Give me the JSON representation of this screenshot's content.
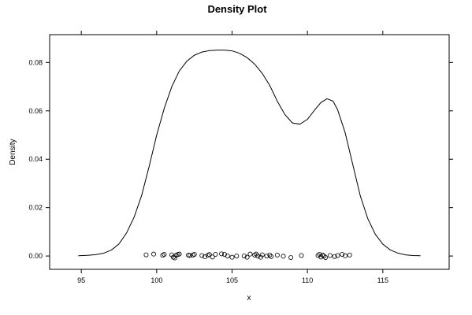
{
  "chart_data": {
    "type": "line",
    "title": "Density Plot",
    "xlabel": "x",
    "ylabel": "Density",
    "xlim": [
      92.9,
      119.4
    ],
    "ylim": [
      -0.0055,
      0.0915
    ],
    "x_ticks": [
      95,
      100,
      105,
      110,
      115
    ],
    "x_tick_labels": [
      "95",
      "100",
      "105",
      "110",
      "115"
    ],
    "y_ticks": [
      0.0,
      0.02,
      0.04,
      0.06,
      0.08
    ],
    "y_tick_labels": [
      "0.00",
      "0.02",
      "0.04",
      "0.06",
      "0.08"
    ],
    "grid": false,
    "series": [
      {
        "x": [
          94.8,
          95.5,
          96.0,
          96.5,
          97.0,
          97.5,
          98.0,
          98.5,
          99.0,
          99.5,
          100.0,
          100.5,
          101.0,
          101.5,
          102.0,
          102.5,
          103.0,
          103.5,
          104.0,
          104.5,
          105.0,
          105.5,
          106.0,
          106.5,
          107.0,
          107.5,
          108.0,
          108.5,
          109.0,
          109.5,
          110.0,
          110.5,
          110.9,
          111.3,
          111.7,
          112.0,
          112.5,
          113.0,
          113.5,
          114.0,
          114.5,
          115.0,
          115.5,
          116.0,
          116.5,
          117.0,
          117.5
        ],
        "y": [
          0.0001,
          0.0003,
          0.0006,
          0.0012,
          0.0025,
          0.005,
          0.0095,
          0.016,
          0.025,
          0.037,
          0.05,
          0.061,
          0.07,
          0.0765,
          0.0805,
          0.083,
          0.0843,
          0.0849,
          0.0851,
          0.0851,
          0.0848,
          0.0838,
          0.082,
          0.0793,
          0.0755,
          0.0705,
          0.064,
          0.0585,
          0.055,
          0.0545,
          0.0565,
          0.0605,
          0.0635,
          0.065,
          0.064,
          0.0605,
          0.051,
          0.038,
          0.025,
          0.0155,
          0.009,
          0.0049,
          0.0025,
          0.0012,
          0.0005,
          0.0002,
          0.0001
        ]
      }
    ],
    "rug": {
      "x": [
        99.3,
        99.8,
        100.4,
        100.5,
        101.0,
        101.1,
        101.2,
        101.3,
        101.4,
        101.5,
        102.1,
        102.2,
        102.4,
        102.5,
        103.0,
        103.2,
        103.4,
        103.5,
        103.7,
        103.9,
        104.3,
        104.5,
        104.7,
        105.0,
        105.3,
        105.8,
        106.0,
        106.2,
        106.5,
        106.6,
        106.7,
        106.9,
        107.0,
        107.3,
        107.5,
        107.6,
        108.0,
        108.4,
        108.9,
        109.6,
        110.7,
        110.8,
        110.9,
        111.0,
        111.1,
        111.2,
        111.5,
        111.8,
        112.0,
        112.3,
        112.5,
        112.8
      ],
      "y": [
        0.0005,
        0.0008,
        0.0003,
        0.0007,
        0.0005,
        -0.0005,
        -0.0008,
        0.0003,
        0.0006,
        0.0008,
        0.0004,
        0.0002,
        0.0004,
        0.0007,
        0.0002,
        -0.0003,
        0.0003,
        0.0006,
        -0.0004,
        0.0007,
        0.0009,
        0.0007,
        0.0,
        -0.0005,
        0.0,
        0.0,
        -0.0005,
        0.0008,
        0.0004,
        0.0008,
        0.0,
        -0.0005,
        0.0005,
        0.0,
        0.0004,
        -0.0002,
        0.0004,
        -0.0001,
        -0.0006,
        0.0002,
        0.0002,
        0.0007,
        -0.0004,
        0.0004,
        0.0,
        -0.0006,
        0.0002,
        -0.0002,
        0.0002,
        0.0007,
        0.0001,
        0.0004
      ]
    }
  }
}
